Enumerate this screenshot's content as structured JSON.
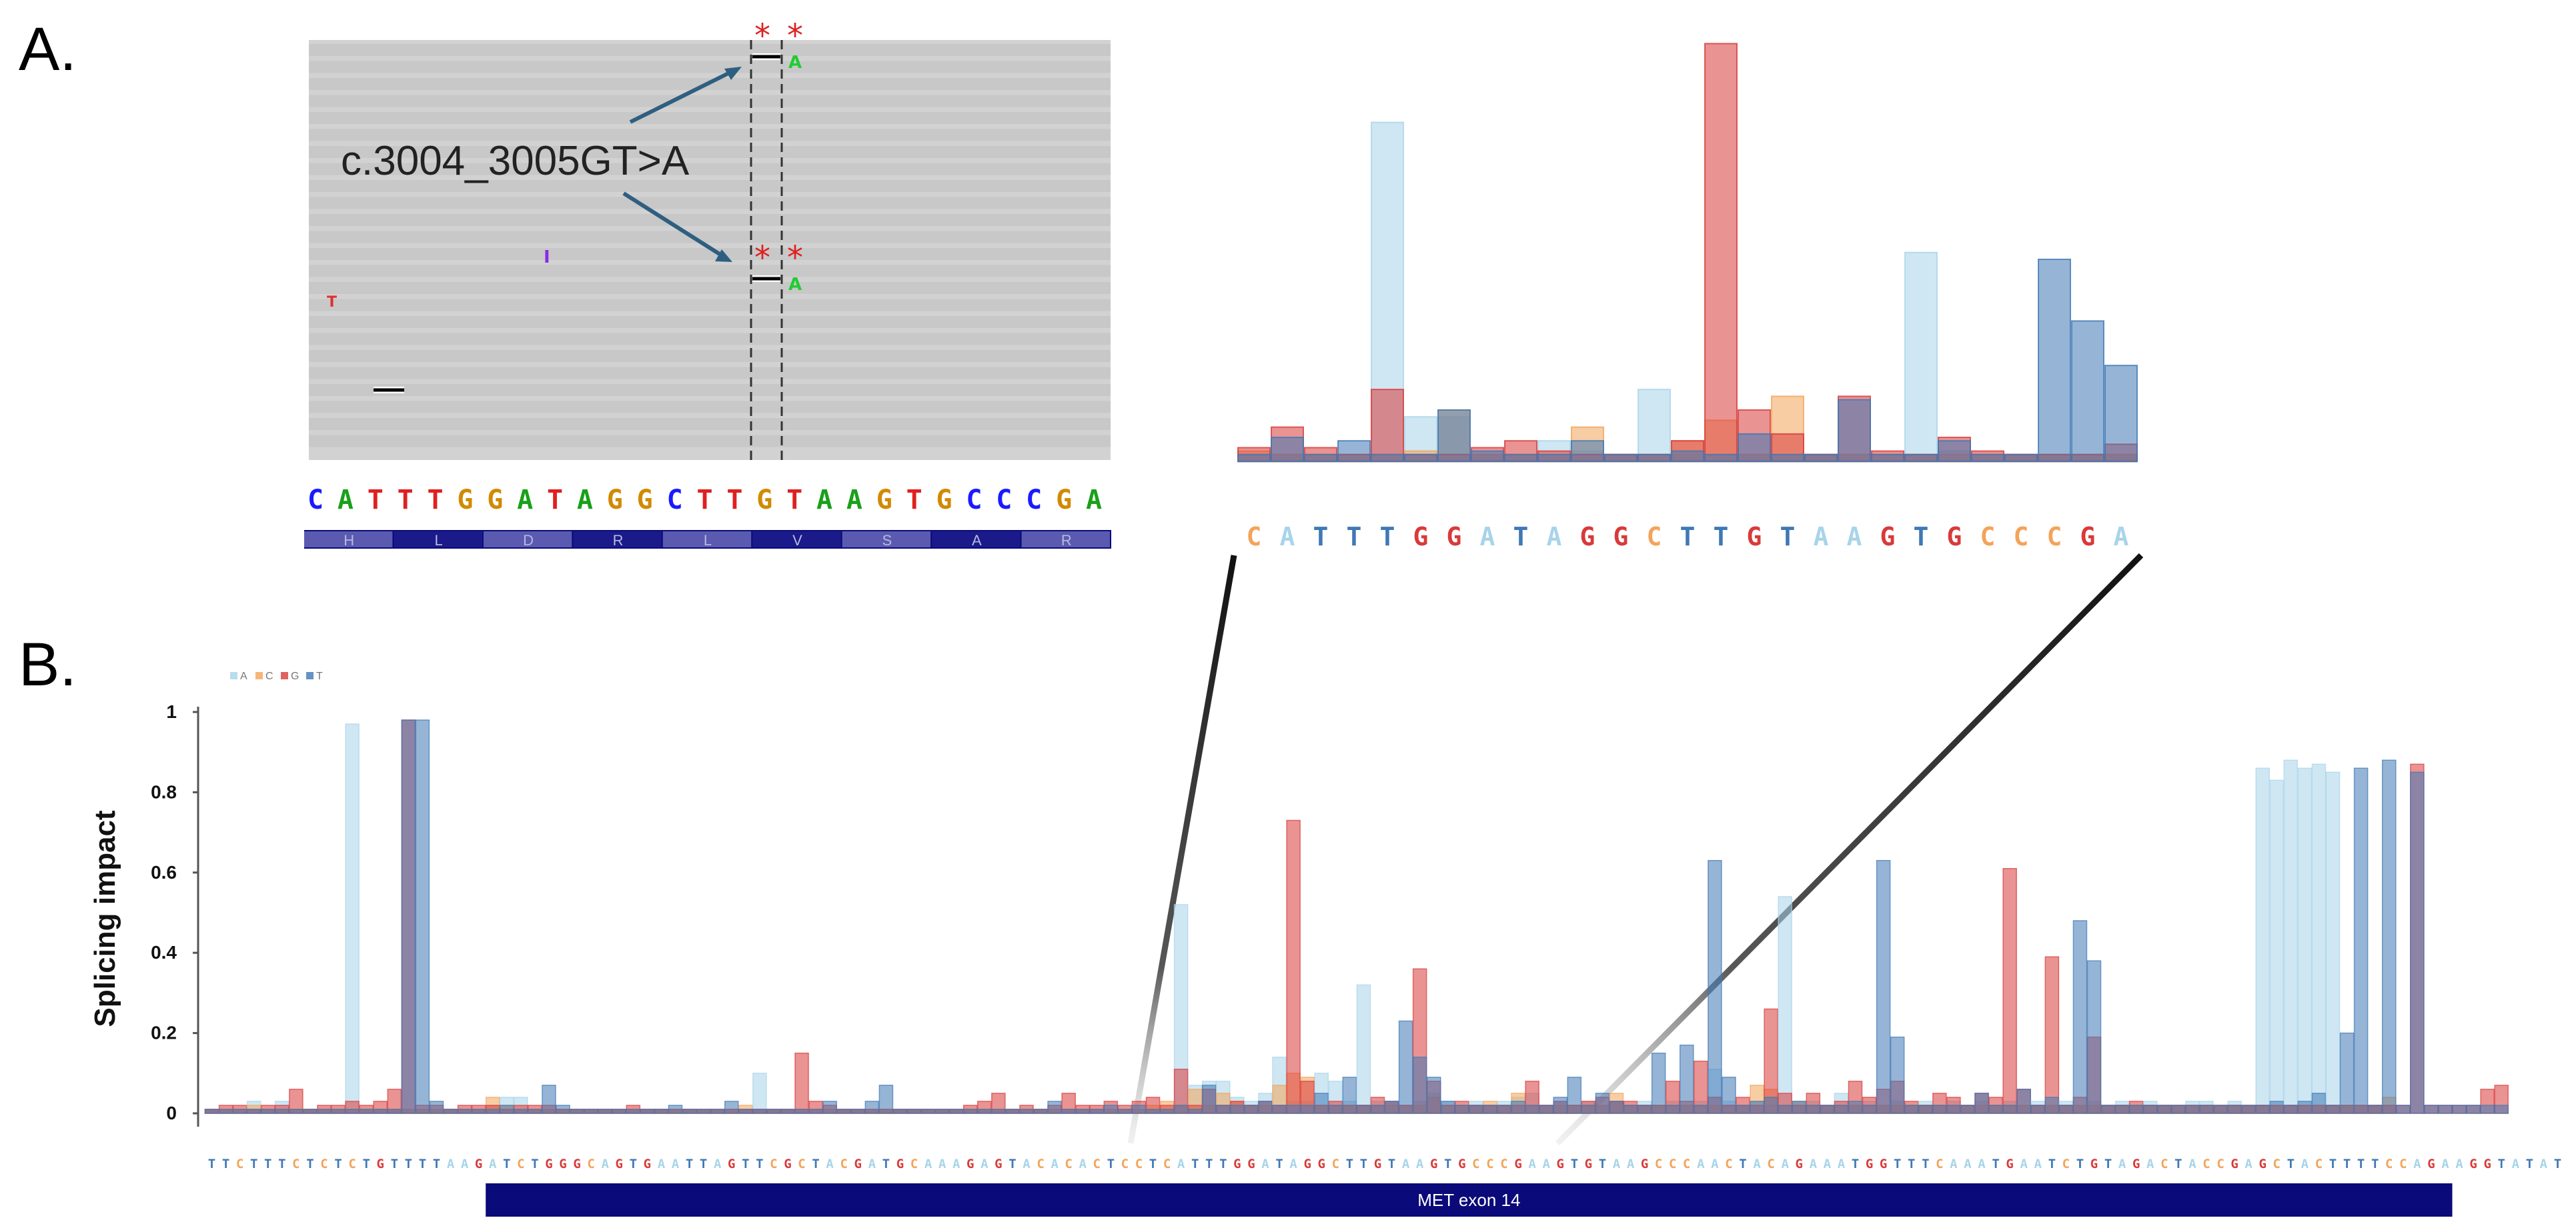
{
  "panel_labels": {
    "a": "A.",
    "b": "B."
  },
  "igv": {
    "annotation": "c.3004_3005GT>A",
    "star": "*",
    "alt_base": "A",
    "mismatch_bases": [
      {
        "letter": "T",
        "color": "#e03030"
      },
      {
        "letter": "I",
        "color": "#8a2be2"
      }
    ],
    "reference": "CATTTGGATAGGCTTGTAAGTGCCCGA",
    "amino_acids": [
      "H",
      "L",
      "D",
      "R",
      "L",
      "V",
      "S",
      "A",
      "R"
    ]
  },
  "colors": {
    "A": "#a8d4ea",
    "C": "#f2a45a",
    "G": "#d83a3a",
    "T": "#3f78b5",
    "igv_read": "#c8c8c8",
    "exon": "#0a0a7a"
  },
  "chart_data": [
    {
      "type": "bar",
      "name": "zoom",
      "sequence": "CATTTGGATAGGCTTGTAAGTGCCCGA",
      "series": [
        {
          "name": "A",
          "values": [
            0.02,
            0.02,
            0.02,
            0.02,
            0.99,
            0.13,
            0.13,
            0.02,
            0.02,
            0.06,
            0.03,
            0.02,
            0.21,
            0.02,
            0.02,
            0.02,
            0.02,
            0.02,
            0.02,
            0.02,
            0.61,
            0.03,
            0.02,
            0.02,
            0.02,
            0.02,
            0.02
          ]
        },
        {
          "name": "C",
          "values": [
            0.03,
            0.02,
            0.02,
            0.02,
            0.02,
            0.03,
            0.15,
            0.02,
            0.02,
            0.02,
            0.1,
            0.02,
            0.02,
            0.06,
            0.12,
            0.02,
            0.19,
            0.02,
            0.02,
            0.02,
            0.02,
            0.02,
            0.02,
            0.02,
            0.02,
            0.02,
            0.02
          ]
        },
        {
          "name": "G",
          "values": [
            0.04,
            0.1,
            0.04,
            0.02,
            0.21,
            0.02,
            0.02,
            0.04,
            0.06,
            0.03,
            0.02,
            0.02,
            0.02,
            0.06,
            1.22,
            0.15,
            0.08,
            0.02,
            0.19,
            0.03,
            0.02,
            0.07,
            0.03,
            0.02,
            0.02,
            0.02,
            0.05
          ]
        },
        {
          "name": "T",
          "values": [
            0.02,
            0.07,
            0.02,
            0.06,
            0.02,
            0.02,
            0.15,
            0.03,
            0.02,
            0.02,
            0.06,
            0.02,
            0.02,
            0.03,
            0.02,
            0.08,
            0.02,
            0.02,
            0.18,
            0.02,
            0.02,
            0.06,
            0.02,
            0.02,
            0.59,
            0.41,
            0.28
          ]
        }
      ]
    },
    {
      "type": "bar",
      "name": "full",
      "ylabel": "Splicing impact",
      "ylim": [
        0,
        1
      ],
      "yticks": [
        0,
        0.2,
        0.4,
        0.6,
        0.8,
        1
      ],
      "legend": {
        "placement": "top-left",
        "entries": [
          "A",
          "C",
          "G",
          "T"
        ]
      },
      "sequence": "TTCTTTCTCTCTGTTTTAAGATCTGGGCAGTGAATTAGTTCGCTACGATGCAAAGAGTACACACTCCTCATTTGGATAGGCTTGTAAGTGCCCGAAGTGTAAGCCCAACTACAGAAATGGTTTCAAATGAATCTGTAGACTACCGAGCTACTTTTCCAGAAGGTATAT",
      "exon_label": "MET exon 14",
      "exon_range": [
        20,
        160
      ],
      "series": [
        {
          "name": "A",
          "values": [
            0.01,
            0.01,
            0.01,
            0.03,
            0.01,
            0.03,
            0.01,
            0.01,
            0.01,
            0.01,
            0.97,
            0.01,
            0.01,
            0.01,
            0.01,
            0.01,
            0.01,
            0.01,
            0.01,
            0.01,
            0.02,
            0.04,
            0.04,
            0.01,
            0.01,
            0.01,
            0.01,
            0.01,
            0.01,
            0.01,
            0.01,
            0.01,
            0.01,
            0.01,
            0.01,
            0.01,
            0.01,
            0.01,
            0.01,
            0.1,
            0.01,
            0.01,
            0.01,
            0.01,
            0.01,
            0.01,
            0.01,
            0.01,
            0.01,
            0.01,
            0.01,
            0.01,
            0.01,
            0.01,
            0.01,
            0.01,
            0.01,
            0.01,
            0.01,
            0.01,
            0.01,
            0.01,
            0.01,
            0.01,
            0.01,
            0.01,
            0.01,
            0.01,
            0.01,
            0.52,
            0.07,
            0.08,
            0.08,
            0.04,
            0.03,
            0.05,
            0.14,
            0.03,
            0.03,
            0.1,
            0.08,
            0.03,
            0.32,
            0.03,
            0.03,
            0.02,
            0.03,
            0.05,
            0.03,
            0.02,
            0.03,
            0.02,
            0.03,
            0.04,
            0.05,
            0.02,
            0.03,
            0.02,
            0.03,
            0.02,
            0.03,
            0.02,
            0.03,
            0.02,
            0.03,
            0.02,
            0.03,
            0.11,
            0.03,
            0.02,
            0.03,
            0.02,
            0.54,
            0.03,
            0.03,
            0.02,
            0.05,
            0.02,
            0.03,
            0.02,
            0.03,
            0.02,
            0.03,
            0.02,
            0.03,
            0.02,
            0.03,
            0.02,
            0.03,
            0.02,
            0.03,
            0.02,
            0.03,
            0.02,
            0.03,
            0.02,
            0.03,
            0.02,
            0.03,
            0.02,
            0.02,
            0.03,
            0.03,
            0.02,
            0.03,
            0.02,
            0.86,
            0.83,
            0.88,
            0.86,
            0.87,
            0.85,
            0.02,
            0.02,
            0.02,
            0.02
          ]
        },
        {
          "name": "C",
          "values": [
            0.01,
            0.01,
            0.01,
            0.02,
            0.01,
            0.01,
            0.01,
            0.01,
            0.01,
            0.01,
            0.01,
            0.01,
            0.01,
            0.01,
            0.01,
            0.01,
            0.01,
            0.01,
            0.01,
            0.01,
            0.04,
            0.02,
            0.01,
            0.01,
            0.01,
            0.01,
            0.01,
            0.01,
            0.01,
            0.01,
            0.01,
            0.01,
            0.01,
            0.01,
            0.01,
            0.01,
            0.01,
            0.01,
            0.02,
            0.01,
            0.01,
            0.01,
            0.01,
            0.01,
            0.01,
            0.01,
            0.01,
            0.01,
            0.01,
            0.01,
            0.01,
            0.01,
            0.01,
            0.01,
            0.01,
            0.01,
            0.01,
            0.01,
            0.01,
            0.01,
            0.01,
            0.01,
            0.01,
            0.01,
            0.01,
            0.01,
            0.01,
            0.02,
            0.03,
            0.02,
            0.06,
            0.02,
            0.05,
            0.03,
            0.02,
            0.02,
            0.07,
            0.1,
            0.09,
            0.02,
            0.02,
            0.02,
            0.02,
            0.02,
            0.02,
            0.02,
            0.02,
            0.04,
            0.02,
            0.02,
            0.02,
            0.03,
            0.02,
            0.05,
            0.02,
            0.02,
            0.02,
            0.02,
            0.02,
            0.02,
            0.05,
            0.02,
            0.02,
            0.02,
            0.02,
            0.02,
            0.02,
            0.02,
            0.02,
            0.02,
            0.07,
            0.06,
            0.02,
            0.03,
            0.02,
            0.02,
            0.02,
            0.02,
            0.02,
            0.02,
            0.02,
            0.02,
            0.02,
            0.02,
            0.02,
            0.02,
            0.02,
            0.02,
            0.02,
            0.02,
            0.02,
            0.02,
            0.02,
            0.02,
            0.02,
            0.02,
            0.02,
            0.02,
            0.02,
            0.02,
            0.02,
            0.02,
            0.02,
            0.02,
            0.02,
            0.02,
            0.02,
            0.02,
            0.02,
            0.02,
            0.02,
            0.02,
            0.02,
            0.02,
            0.02,
            0.04
          ]
        },
        {
          "name": "G",
          "values": [
            0.01,
            0.02,
            0.02,
            0.01,
            0.02,
            0.02,
            0.06,
            0.01,
            0.02,
            0.02,
            0.03,
            0.02,
            0.03,
            0.06,
            0.98,
            0.02,
            0.02,
            0.01,
            0.02,
            0.02,
            0.02,
            0.01,
            0.02,
            0.02,
            0.02,
            0.01,
            0.01,
            0.01,
            0.01,
            0.01,
            0.02,
            0.01,
            0.01,
            0.01,
            0.01,
            0.01,
            0.01,
            0.01,
            0.01,
            0.01,
            0.01,
            0.01,
            0.15,
            0.03,
            0.02,
            0.01,
            0.01,
            0.01,
            0.01,
            0.01,
            0.01,
            0.01,
            0.01,
            0.01,
            0.02,
            0.03,
            0.05,
            0.01,
            0.02,
            0.01,
            0.02,
            0.05,
            0.02,
            0.02,
            0.03,
            0.02,
            0.03,
            0.04,
            0.02,
            0.11,
            0.02,
            0.06,
            0.02,
            0.03,
            0.02,
            0.03,
            0.02,
            0.73,
            0.08,
            0.02,
            0.03,
            0.02,
            0.02,
            0.04,
            0.03,
            0.02,
            0.36,
            0.08,
            0.02,
            0.03,
            0.02,
            0.02,
            0.02,
            0.02,
            0.08,
            0.02,
            0.03,
            0.02,
            0.03,
            0.04,
            0.03,
            0.03,
            0.02,
            0.02,
            0.08,
            0.03,
            0.13,
            0.04,
            0.02,
            0.04,
            0.02,
            0.26,
            0.05,
            0.02,
            0.05,
            0.02,
            0.03,
            0.08,
            0.04,
            0.06,
            0.08,
            0.03,
            0.02,
            0.05,
            0.04,
            0.02,
            0.05,
            0.04,
            0.61,
            0.06,
            0.02,
            0.39,
            0.02,
            0.04,
            0.19,
            0.02,
            0.02,
            0.03,
            0.02,
            0.02,
            0.02,
            0.02,
            0.02,
            0.02,
            0.02,
            0.02,
            0.02,
            0.02,
            0.02,
            0.02,
            0.02,
            0.02,
            0.02,
            0.02,
            0.02,
            0.02,
            0.02,
            0.87,
            0.02,
            0.02,
            0.02,
            0.02,
            0.06,
            0.07
          ]
        },
        {
          "name": "T",
          "values": [
            0.01,
            0.01,
            0.01,
            0.01,
            0.01,
            0.01,
            0.01,
            0.01,
            0.01,
            0.01,
            0.01,
            0.01,
            0.01,
            0.01,
            0.98,
            0.98,
            0.03,
            0.01,
            0.01,
            0.01,
            0.01,
            0.02,
            0.01,
            0.01,
            0.07,
            0.02,
            0.01,
            0.01,
            0.01,
            0.01,
            0.01,
            0.01,
            0.01,
            0.02,
            0.01,
            0.01,
            0.01,
            0.03,
            0.01,
            0.01,
            0.01,
            0.01,
            0.01,
            0.01,
            0.03,
            0.01,
            0.01,
            0.03,
            0.07,
            0.01,
            0.01,
            0.01,
            0.01,
            0.01,
            0.01,
            0.01,
            0.01,
            0.01,
            0.01,
            0.01,
            0.03,
            0.01,
            0.01,
            0.01,
            0.02,
            0.01,
            0.02,
            0.01,
            0.01,
            0.02,
            0.01,
            0.07,
            0.02,
            0.02,
            0.02,
            0.03,
            0.02,
            0.02,
            0.02,
            0.05,
            0.02,
            0.09,
            0.02,
            0.02,
            0.03,
            0.23,
            0.14,
            0.09,
            0.03,
            0.02,
            0.02,
            0.02,
            0.02,
            0.03,
            0.02,
            0.02,
            0.04,
            0.09,
            0.02,
            0.05,
            0.03,
            0.02,
            0.02,
            0.15,
            0.02,
            0.17,
            0.02,
            0.63,
            0.09,
            0.02,
            0.03,
            0.04,
            0.02,
            0.03,
            0.02,
            0.02,
            0.02,
            0.03,
            0.02,
            0.63,
            0.19,
            0.02,
            0.02,
            0.02,
            0.02,
            0.02,
            0.05,
            0.02,
            0.02,
            0.06,
            0.02,
            0.04,
            0.02,
            0.48,
            0.38,
            0.02,
            0.02,
            0.02,
            0.02,
            0.02,
            0.02,
            0.02,
            0.02,
            0.02,
            0.02,
            0.02,
            0.02,
            0.03,
            0.02,
            0.03,
            0.05,
            0.02,
            0.2,
            0.86,
            0.02,
            0.88,
            0.02,
            0.85,
            0.02,
            0.02,
            0.02,
            0.02,
            0.02,
            0.02
          ]
        }
      ]
    }
  ]
}
